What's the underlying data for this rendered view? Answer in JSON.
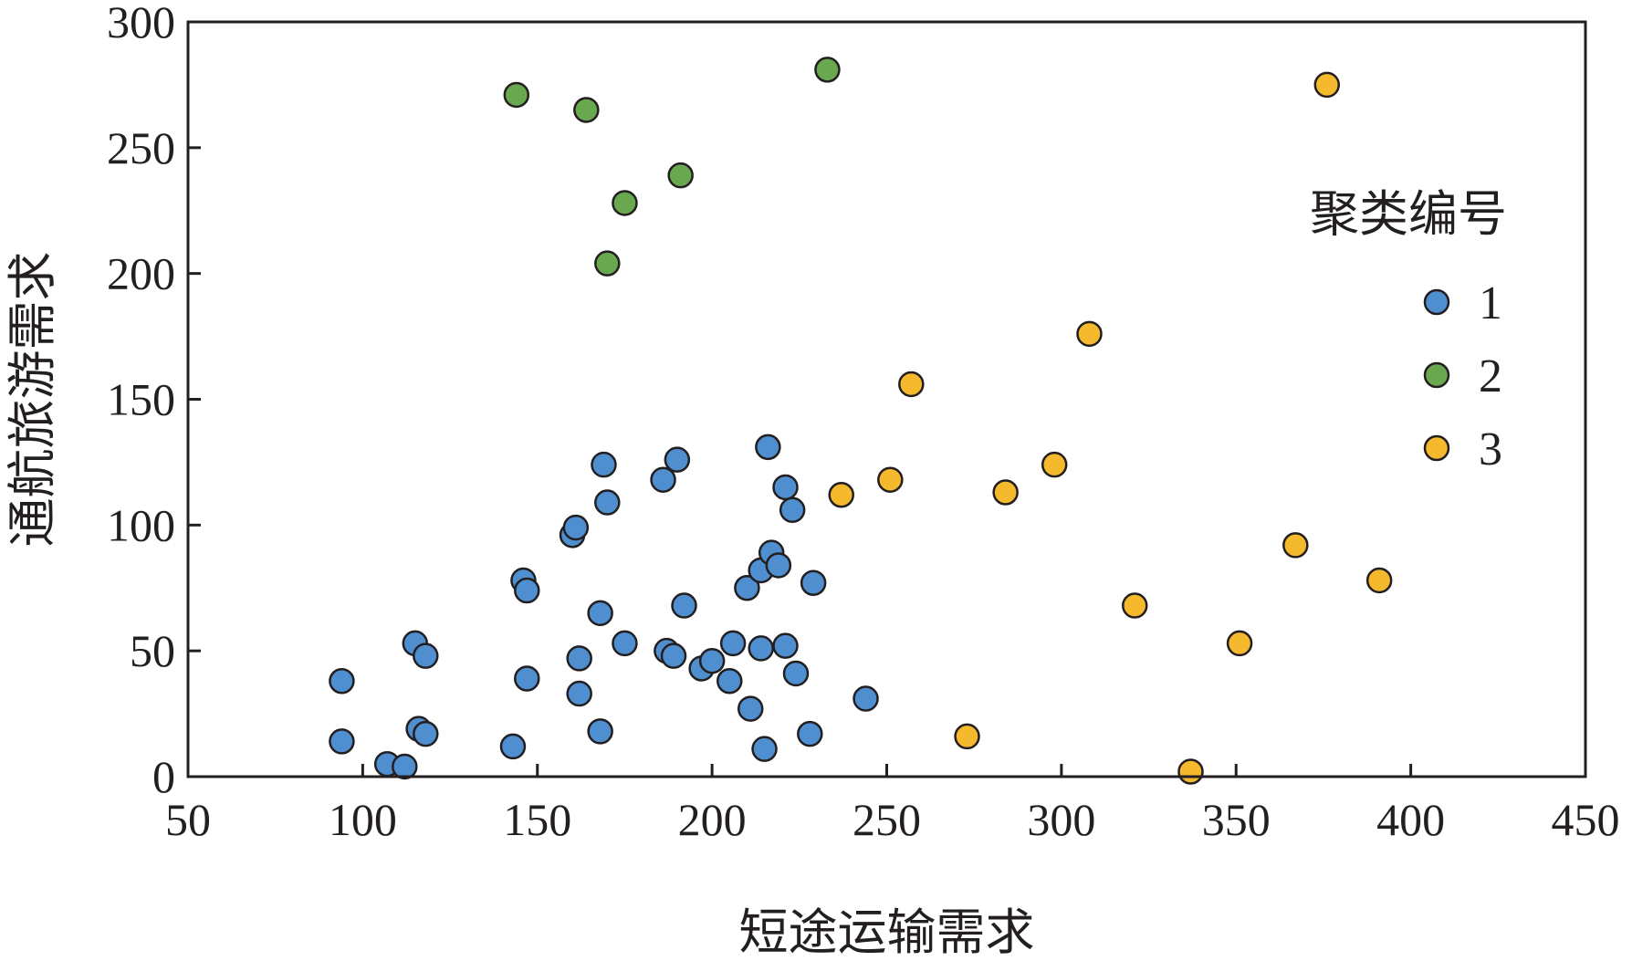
{
  "chart_data": {
    "type": "scatter",
    "xlabel": "短途运输需求",
    "ylabel": "通航旅游需求",
    "xlim": [
      50,
      450
    ],
    "ylim": [
      0,
      300
    ],
    "xticks": [
      "50",
      "100",
      "150",
      "200",
      "250",
      "300",
      "350",
      "400",
      "450"
    ],
    "yticks": [
      "0",
      "50",
      "100",
      "150",
      "200",
      "250",
      "300"
    ],
    "grid": false,
    "legend": {
      "title": "聚类编号",
      "placement": "right"
    },
    "series": [
      {
        "name": "1",
        "color": "#4f8fd0",
        "points": [
          [
            94,
            38
          ],
          [
            94,
            14
          ],
          [
            107,
            5
          ],
          [
            112,
            4
          ],
          [
            115,
            53
          ],
          [
            116,
            19
          ],
          [
            118,
            17
          ],
          [
            118,
            48
          ],
          [
            143,
            12
          ],
          [
            146,
            78
          ],
          [
            147,
            74
          ],
          [
            147,
            39
          ],
          [
            160,
            96
          ],
          [
            161,
            99
          ],
          [
            162,
            33
          ],
          [
            162,
            47
          ],
          [
            168,
            65
          ],
          [
            168,
            18
          ],
          [
            169,
            124
          ],
          [
            170,
            109
          ],
          [
            175,
            53
          ],
          [
            186,
            118
          ],
          [
            187,
            50
          ],
          [
            189,
            48
          ],
          [
            190,
            126
          ],
          [
            192,
            68
          ],
          [
            197,
            43
          ],
          [
            200,
            46
          ],
          [
            205,
            38
          ],
          [
            206,
            53
          ],
          [
            210,
            75
          ],
          [
            211,
            27
          ],
          [
            214,
            51
          ],
          [
            214,
            82
          ],
          [
            215,
            11
          ],
          [
            216,
            131
          ],
          [
            217,
            89
          ],
          [
            219,
            84
          ],
          [
            221,
            115
          ],
          [
            221,
            52
          ],
          [
            223,
            106
          ],
          [
            224,
            41
          ],
          [
            228,
            17
          ],
          [
            229,
            77
          ],
          [
            244,
            31
          ]
        ]
      },
      {
        "name": "2",
        "color": "#6aa84f",
        "points": [
          [
            144,
            271
          ],
          [
            164,
            265
          ],
          [
            170,
            204
          ],
          [
            175,
            228
          ],
          [
            191,
            239
          ],
          [
            233,
            281
          ]
        ]
      },
      {
        "name": "3",
        "color": "#f5b92e",
        "points": [
          [
            237,
            112
          ],
          [
            251,
            118
          ],
          [
            257,
            156
          ],
          [
            273,
            16
          ],
          [
            284,
            113
          ],
          [
            298,
            124
          ],
          [
            308,
            176
          ],
          [
            321,
            68
          ],
          [
            337,
            2
          ],
          [
            351,
            53
          ],
          [
            367,
            92
          ],
          [
            376,
            275
          ],
          [
            391,
            78
          ]
        ]
      }
    ]
  }
}
